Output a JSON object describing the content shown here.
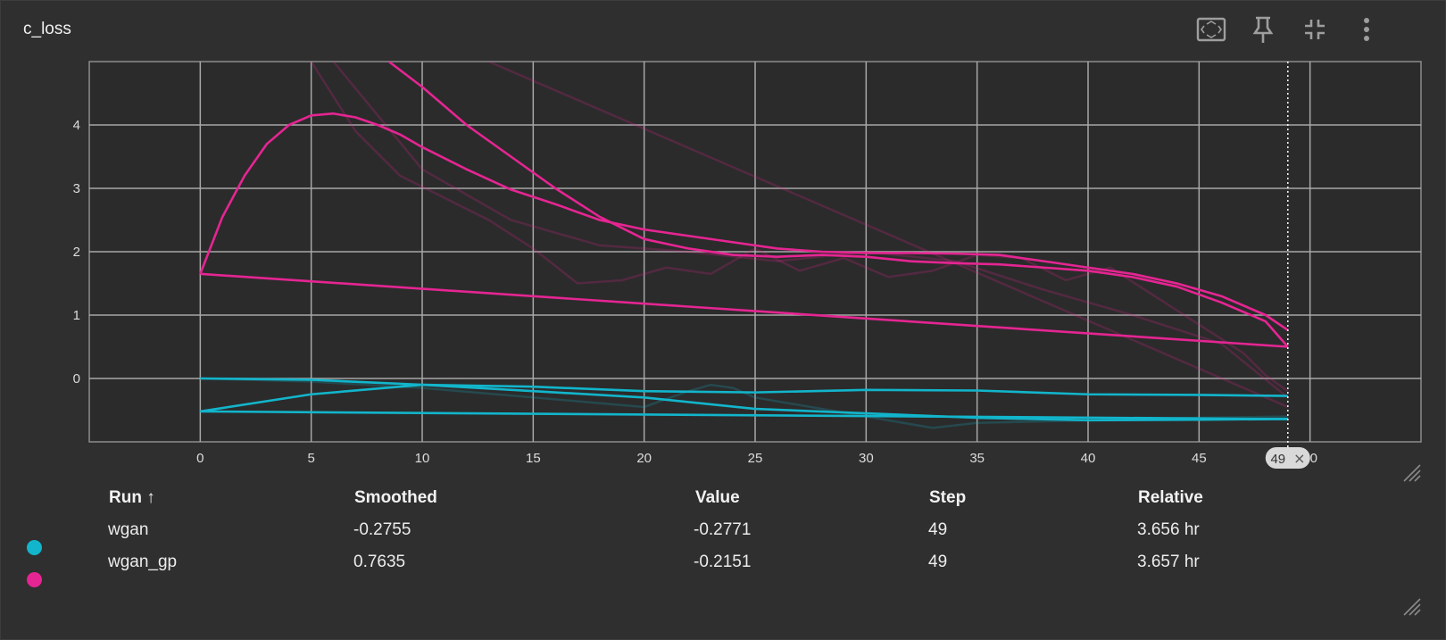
{
  "panel": {
    "title": "c_loss",
    "icons": [
      "fit-to-screen-icon",
      "pin-icon",
      "collapse-icon",
      "more-vert-icon"
    ]
  },
  "chart_data": {
    "type": "line",
    "xlabel": "",
    "ylabel": "",
    "xlim": [
      -5,
      55
    ],
    "ylim": [
      -1,
      5
    ],
    "xticks": [
      0,
      5,
      10,
      15,
      20,
      25,
      30,
      35,
      40,
      45,
      50
    ],
    "yticks": [
      0,
      1,
      2,
      3,
      4
    ],
    "grid": true,
    "cursor_step": 49,
    "cursor_label": "49",
    "series": [
      {
        "name": "wgan",
        "color": "#12b5cb",
        "lines": [
          {
            "x": [
              0,
              49
            ],
            "y": [
              -0.52,
              -0.64
            ]
          },
          {
            "x": [
              0,
              5,
              10,
              15,
              20,
              25,
              30,
              35,
              40,
              45,
              49
            ],
            "y": [
              -0.52,
              -0.25,
              -0.1,
              -0.13,
              -0.2,
              -0.22,
              -0.18,
              -0.19,
              -0.25,
              -0.26,
              -0.2755
            ]
          },
          {
            "x": [
              0,
              5,
              10,
              15,
              20,
              25,
              30,
              35,
              40,
              45,
              49
            ],
            "y": [
              0.0,
              -0.02,
              -0.1,
              -0.2,
              -0.3,
              -0.48,
              -0.55,
              -0.62,
              -0.66,
              -0.65,
              -0.64
            ]
          }
        ],
        "raw": [
          {
            "x": [
              0,
              5,
              10,
              15,
              20,
              22,
              23,
              24,
              25,
              30,
              33,
              35,
              40,
              45,
              49
            ],
            "y": [
              0.0,
              -0.05,
              -0.15,
              -0.3,
              -0.45,
              -0.2,
              -0.1,
              -0.15,
              -0.3,
              -0.6,
              -0.78,
              -0.7,
              -0.66,
              -0.62,
              -0.6
            ]
          }
        ]
      },
      {
        "name": "wgan_gp",
        "color": "#e52592",
        "lines": [
          {
            "x": [
              0,
              49
            ],
            "y": [
              1.65,
              0.5
            ]
          },
          {
            "x": [
              0,
              1,
              2,
              3,
              4,
              5,
              6,
              7,
              8,
              9,
              10,
              12,
              14,
              16,
              18,
              20,
              22,
              24,
              26,
              28,
              30,
              32,
              34,
              36,
              38,
              40,
              42,
              44,
              46,
              48,
              49
            ],
            "y": [
              1.65,
              2.55,
              3.2,
              3.7,
              4.0,
              4.15,
              4.18,
              4.12,
              4.0,
              3.85,
              3.65,
              3.3,
              2.98,
              2.75,
              2.5,
              2.35,
              2.25,
              2.15,
              2.05,
              2.0,
              1.98,
              1.98,
              1.97,
              1.95,
              1.85,
              1.75,
              1.65,
              1.5,
              1.3,
              1.0,
              0.7635
            ]
          },
          {
            "x": [
              8.5,
              10,
              12,
              14,
              16,
              18,
              20,
              22,
              24,
              26,
              28,
              30,
              32,
              34,
              36,
              38,
              40,
              42,
              44,
              46,
              48,
              49
            ],
            "y": [
              5.0,
              4.6,
              4.0,
              3.5,
              3.0,
              2.55,
              2.2,
              2.05,
              1.95,
              1.92,
              1.95,
              1.92,
              1.85,
              1.82,
              1.8,
              1.75,
              1.7,
              1.6,
              1.45,
              1.2,
              0.9,
              0.5
            ]
          }
        ],
        "raw": [
          {
            "x": [
              5,
              7,
              9,
              11,
              13,
              15,
              17,
              19,
              21,
              23,
              25,
              27,
              29,
              31,
              33,
              35,
              37,
              39,
              41,
              43,
              45,
              47,
              48,
              49
            ],
            "y": [
              5.0,
              3.9,
              3.2,
              2.85,
              2.5,
              2.05,
              1.5,
              1.55,
              1.75,
              1.65,
              2.05,
              1.7,
              1.9,
              1.6,
              1.7,
              1.95,
              1.9,
              1.55,
              1.75,
              1.3,
              0.85,
              0.4,
              0.05,
              -0.2
            ]
          },
          {
            "x": [
              6,
              10,
              14,
              18,
              22,
              26,
              30,
              34,
              38,
              42,
              46,
              49
            ],
            "y": [
              5.0,
              3.3,
              2.5,
              2.1,
              2.0,
              1.85,
              2.0,
              1.85,
              1.4,
              1.0,
              0.55,
              -0.3
            ]
          },
          {
            "x": [
              13,
              49
            ],
            "y": [
              5.0,
              -0.45
            ]
          }
        ]
      }
    ]
  },
  "table": {
    "headers": {
      "run": "Run ↑",
      "smoothed": "Smoothed",
      "value": "Value",
      "step": "Step",
      "relative": "Relative"
    },
    "rows": [
      {
        "run": "wgan",
        "smoothed": "-0.2755",
        "value": "-0.2771",
        "step": "49",
        "relative": "3.656 hr",
        "color": "#12b5cb"
      },
      {
        "run": "wgan_gp",
        "smoothed": "0.7635",
        "value": "-0.2151",
        "step": "49",
        "relative": "3.657 hr",
        "color": "#e52592"
      }
    ]
  }
}
